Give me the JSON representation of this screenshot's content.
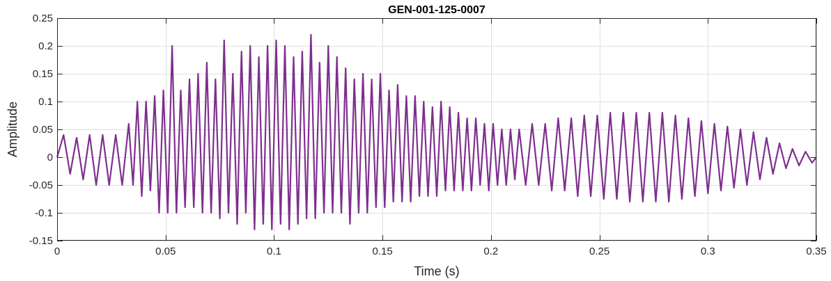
{
  "chart_data": {
    "type": "line",
    "title": "GEN-001-125-0007",
    "xlabel": "Time (s)",
    "ylabel": "Amplitude",
    "xlim": [
      0,
      0.35
    ],
    "ylim": [
      -0.15,
      0.25
    ],
    "grid": true,
    "x_ticks": [
      0,
      0.05,
      0.1,
      0.15,
      0.2,
      0.25,
      0.3,
      0.35
    ],
    "x_tick_labels": [
      "0",
      "0.05",
      "0.1",
      "0.15",
      "0.2",
      "0.25",
      "0.3",
      "0.35"
    ],
    "y_ticks": [
      -0.15,
      -0.1,
      -0.05,
      0,
      0.05,
      0.1,
      0.15,
      0.2,
      0.25
    ],
    "y_tick_labels": [
      "-0.15",
      "-0.1",
      "-0.05",
      "0",
      "0.05",
      "0.1",
      "0.15",
      "0.2",
      "0.25"
    ],
    "series": [
      {
        "color": "#7E2F8E",
        "points": [
          [
            0.0,
            0.0
          ],
          [
            0.003,
            0.04
          ],
          [
            0.006,
            -0.03
          ],
          [
            0.009,
            0.035
          ],
          [
            0.012,
            -0.04
          ],
          [
            0.015,
            0.04
          ],
          [
            0.018,
            -0.05
          ],
          [
            0.021,
            0.04
          ],
          [
            0.024,
            -0.05
          ],
          [
            0.027,
            0.04
          ],
          [
            0.03,
            -0.05
          ],
          [
            0.033,
            0.06
          ],
          [
            0.035,
            -0.05
          ],
          [
            0.037,
            0.1
          ],
          [
            0.039,
            -0.07
          ],
          [
            0.041,
            0.1
          ],
          [
            0.043,
            -0.06
          ],
          [
            0.045,
            0.11
          ],
          [
            0.047,
            -0.1
          ],
          [
            0.049,
            0.12
          ],
          [
            0.051,
            -0.1
          ],
          [
            0.053,
            0.2
          ],
          [
            0.055,
            -0.1
          ],
          [
            0.057,
            0.12
          ],
          [
            0.059,
            -0.09
          ],
          [
            0.061,
            0.14
          ],
          [
            0.063,
            -0.09
          ],
          [
            0.065,
            0.15
          ],
          [
            0.067,
            -0.1
          ],
          [
            0.069,
            0.17
          ],
          [
            0.071,
            -0.1
          ],
          [
            0.073,
            0.14
          ],
          [
            0.075,
            -0.11
          ],
          [
            0.077,
            0.21
          ],
          [
            0.079,
            -0.1
          ],
          [
            0.081,
            0.15
          ],
          [
            0.083,
            -0.12
          ],
          [
            0.085,
            0.19
          ],
          [
            0.087,
            -0.1
          ],
          [
            0.089,
            0.2
          ],
          [
            0.091,
            -0.13
          ],
          [
            0.093,
            0.18
          ],
          [
            0.095,
            -0.12
          ],
          [
            0.097,
            0.2
          ],
          [
            0.099,
            -0.13
          ],
          [
            0.101,
            0.21
          ],
          [
            0.103,
            -0.12
          ],
          [
            0.105,
            0.2
          ],
          [
            0.107,
            -0.13
          ],
          [
            0.109,
            0.18
          ],
          [
            0.111,
            -0.12
          ],
          [
            0.113,
            0.19
          ],
          [
            0.115,
            -0.11
          ],
          [
            0.117,
            0.22
          ],
          [
            0.119,
            -0.11
          ],
          [
            0.121,
            0.17
          ],
          [
            0.123,
            -0.1
          ],
          [
            0.125,
            0.2
          ],
          [
            0.127,
            -0.1
          ],
          [
            0.129,
            0.18
          ],
          [
            0.131,
            -0.1
          ],
          [
            0.133,
            0.16
          ],
          [
            0.135,
            -0.12
          ],
          [
            0.137,
            0.14
          ],
          [
            0.139,
            -0.1
          ],
          [
            0.141,
            0.15
          ],
          [
            0.143,
            -0.1
          ],
          [
            0.145,
            0.14
          ],
          [
            0.147,
            -0.09
          ],
          [
            0.149,
            0.15
          ],
          [
            0.151,
            -0.09
          ],
          [
            0.153,
            0.12
          ],
          [
            0.155,
            -0.08
          ],
          [
            0.157,
            0.13
          ],
          [
            0.159,
            -0.08
          ],
          [
            0.161,
            0.11
          ],
          [
            0.163,
            -0.08
          ],
          [
            0.165,
            0.11
          ],
          [
            0.167,
            -0.07
          ],
          [
            0.169,
            0.1
          ],
          [
            0.171,
            -0.07
          ],
          [
            0.173,
            0.09
          ],
          [
            0.175,
            -0.07
          ],
          [
            0.177,
            0.1
          ],
          [
            0.179,
            -0.06
          ],
          [
            0.181,
            0.09
          ],
          [
            0.183,
            -0.06
          ],
          [
            0.185,
            0.08
          ],
          [
            0.187,
            -0.06
          ],
          [
            0.189,
            0.07
          ],
          [
            0.191,
            -0.06
          ],
          [
            0.193,
            0.07
          ],
          [
            0.195,
            -0.05
          ],
          [
            0.197,
            0.06
          ],
          [
            0.199,
            -0.06
          ],
          [
            0.201,
            0.06
          ],
          [
            0.203,
            -0.05
          ],
          [
            0.205,
            0.05
          ],
          [
            0.207,
            -0.05
          ],
          [
            0.209,
            0.05
          ],
          [
            0.211,
            -0.04
          ],
          [
            0.213,
            0.05
          ],
          [
            0.216,
            -0.05
          ],
          [
            0.219,
            0.06
          ],
          [
            0.222,
            -0.05
          ],
          [
            0.225,
            0.06
          ],
          [
            0.228,
            -0.06
          ],
          [
            0.231,
            0.07
          ],
          [
            0.234,
            -0.06
          ],
          [
            0.237,
            0.07
          ],
          [
            0.24,
            -0.07
          ],
          [
            0.243,
            0.075
          ],
          [
            0.246,
            -0.07
          ],
          [
            0.249,
            0.075
          ],
          [
            0.252,
            -0.075
          ],
          [
            0.255,
            0.08
          ],
          [
            0.258,
            -0.075
          ],
          [
            0.261,
            0.08
          ],
          [
            0.264,
            -0.08
          ],
          [
            0.267,
            0.08
          ],
          [
            0.27,
            -0.08
          ],
          [
            0.273,
            0.08
          ],
          [
            0.276,
            -0.08
          ],
          [
            0.279,
            0.08
          ],
          [
            0.282,
            -0.08
          ],
          [
            0.285,
            0.075
          ],
          [
            0.288,
            -0.075
          ],
          [
            0.291,
            0.07
          ],
          [
            0.294,
            -0.07
          ],
          [
            0.297,
            0.065
          ],
          [
            0.3,
            -0.065
          ],
          [
            0.303,
            0.06
          ],
          [
            0.306,
            -0.06
          ],
          [
            0.309,
            0.055
          ],
          [
            0.312,
            -0.055
          ],
          [
            0.315,
            0.05
          ],
          [
            0.318,
            -0.05
          ],
          [
            0.321,
            0.045
          ],
          [
            0.324,
            -0.04
          ],
          [
            0.327,
            0.035
          ],
          [
            0.33,
            -0.03
          ],
          [
            0.333,
            0.025
          ],
          [
            0.336,
            -0.02
          ],
          [
            0.339,
            0.015
          ],
          [
            0.342,
            -0.015
          ],
          [
            0.345,
            0.01
          ],
          [
            0.348,
            -0.01
          ],
          [
            0.35,
            0.0
          ]
        ]
      }
    ]
  }
}
